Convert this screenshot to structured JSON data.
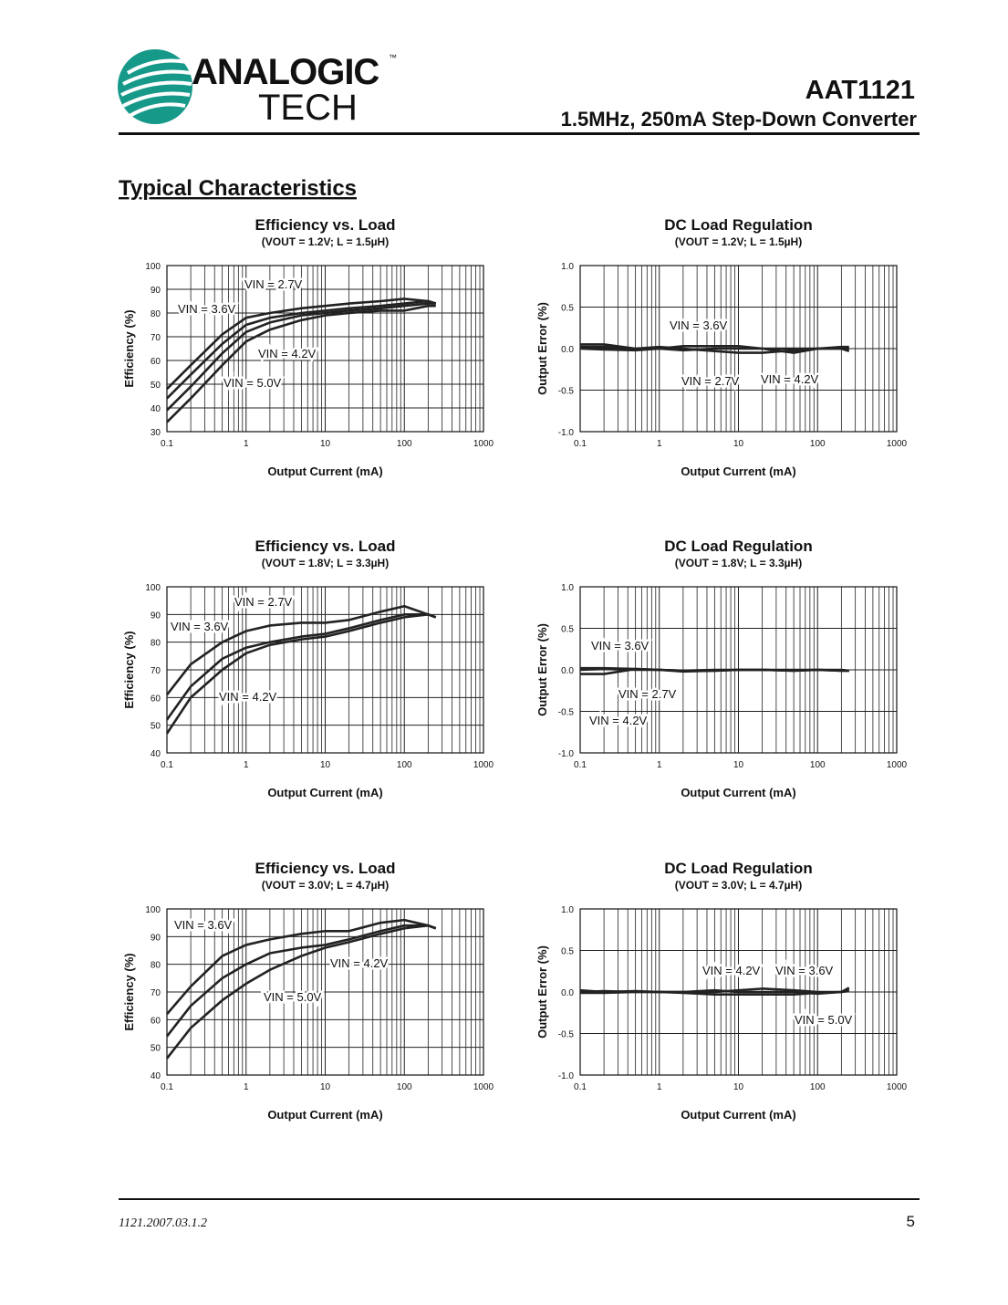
{
  "header": {
    "logo_top": "ANALOGIC",
    "logo_bottom": "TECH",
    "trademark": "™",
    "part": "AAT1121",
    "subtitle": "1.5MHz, 250mA Step-Down Converter"
  },
  "section_title": "Typical Characteristics",
  "footer": {
    "doc_id": "1121.2007.03.1.2",
    "page": "5"
  },
  "chart_data": [
    {
      "type": "line",
      "title": "Efficiency vs. Load",
      "subtitle": "(VOUT = 1.2V; L = 1.5µH)",
      "x_label": "Output Current (mA)",
      "y_label": "Efficiency (%)",
      "xscale": "log",
      "grid": true,
      "xlim": [
        0.1,
        1000
      ],
      "xticks": [
        0.1,
        1,
        10,
        100,
        1000
      ],
      "ylim": [
        30,
        100
      ],
      "yticks": [
        30,
        40,
        50,
        60,
        70,
        80,
        90,
        100
      ],
      "x": [
        0.1,
        0.2,
        0.5,
        1,
        2,
        5,
        10,
        20,
        50,
        100,
        200,
        250
      ],
      "series": [
        {
          "name": "VIN = 2.7V",
          "color": "#222222",
          "values": [
            48,
            58,
            71,
            78,
            80,
            82,
            83,
            84,
            85,
            86,
            85,
            84
          ]
        },
        {
          "name": "VIN = 3.6V",
          "color": "#222222",
          "values": [
            44,
            54,
            67,
            75,
            78,
            80,
            81,
            82,
            83,
            84,
            85,
            84
          ]
        },
        {
          "name": "VIN = 4.2V",
          "color": "#222222",
          "values": [
            39,
            49,
            63,
            72,
            76,
            79,
            80,
            81,
            82,
            83,
            84,
            84
          ]
        },
        {
          "name": "VIN = 5.0V",
          "color": "#222222",
          "values": [
            34,
            44,
            58,
            68,
            73,
            77,
            79,
            80,
            81,
            81,
            83,
            83
          ]
        }
      ]
    },
    {
      "type": "line",
      "title": "DC Load Regulation",
      "subtitle": "(VOUT = 1.2V; L = 1.5µH)",
      "x_label": "Output Current (mA)",
      "y_label": "Output Error (%)",
      "xscale": "log",
      "grid": true,
      "xlim": [
        0.1,
        1000
      ],
      "xticks": [
        0.1,
        1,
        10,
        100,
        1000
      ],
      "ylim": [
        -1,
        1
      ],
      "yticks": [
        {
          "value": -1,
          "label": "-1.0"
        },
        -0.5,
        {
          "value": 0,
          "label": "0.0"
        },
        0.5,
        {
          "value": 1,
          "label": "1.0"
        }
      ],
      "x": [
        0.1,
        0.2,
        0.5,
        1,
        2,
        5,
        10,
        20,
        50,
        100,
        200,
        250
      ],
      "series": [
        {
          "name": "VIN = 3.6V",
          "color": "#222222",
          "values": [
            0.05,
            0.05,
            0,
            0,
            0.03,
            0.03,
            0.03,
            0,
            0,
            0,
            0,
            0
          ]
        },
        {
          "name": "VIN = 2.7V",
          "color": "#222222",
          "values": [
            0.02,
            0.02,
            0,
            0.02,
            0,
            -0.03,
            -0.05,
            -0.05,
            -0.02,
            0,
            0,
            -0.03
          ]
        },
        {
          "name": "VIN = 4.2V",
          "color": "#222222",
          "values": [
            0,
            -0.01,
            -0.02,
            0,
            -0.02,
            0,
            0,
            0,
            -0.05,
            0,
            0.02,
            0.02
          ]
        }
      ]
    },
    {
      "type": "line",
      "title": "Efficiency vs. Load",
      "subtitle": "(VOUT = 1.8V; L = 3.3µH)",
      "x_label": "Output Current (mA)",
      "y_label": "Efficiency (%)",
      "xscale": "log",
      "grid": true,
      "xlim": [
        0.1,
        1000
      ],
      "xticks": [
        0.1,
        1,
        10,
        100,
        1000
      ],
      "ylim": [
        40,
        100
      ],
      "yticks": [
        40,
        50,
        60,
        70,
        80,
        90,
        100
      ],
      "x": [
        0.1,
        0.2,
        0.5,
        1,
        2,
        5,
        10,
        20,
        50,
        100,
        200,
        250
      ],
      "series": [
        {
          "name": "VIN = 2.7V",
          "color": "#222222",
          "values": [
            61,
            72,
            80,
            84,
            86,
            87,
            87,
            88,
            91,
            93,
            90,
            89
          ]
        },
        {
          "name": "VIN = 3.6V",
          "color": "#222222",
          "values": [
            52,
            64,
            74,
            78,
            80,
            82,
            83,
            85,
            88,
            90,
            90,
            89
          ]
        },
        {
          "name": "VIN = 4.2V",
          "color": "#222222",
          "values": [
            47,
            60,
            70,
            76,
            79,
            81,
            82,
            84,
            87,
            89,
            90,
            89
          ]
        }
      ]
    },
    {
      "type": "line",
      "title": "DC Load Regulation",
      "subtitle": "(VOUT = 1.8V; L = 3.3µH)",
      "x_label": "Output Current (mA)",
      "y_label": "Output Error (%)",
      "xscale": "log",
      "grid": true,
      "xlim": [
        0.1,
        1000
      ],
      "xticks": [
        0.1,
        1,
        10,
        100,
        1000
      ],
      "ylim": [
        -1,
        1
      ],
      "yticks": [
        {
          "value": -1,
          "label": "-1.0"
        },
        -0.5,
        {
          "value": 0,
          "label": "0.0"
        },
        0.5,
        {
          "value": 1,
          "label": "1.0"
        }
      ],
      "x": [
        0.1,
        0.2,
        0.5,
        1,
        2,
        5,
        10,
        20,
        50,
        100,
        200,
        250
      ],
      "series": [
        {
          "name": "VIN = 3.6V",
          "color": "#222222",
          "values": [
            0,
            0.01,
            0,
            0,
            -0.01,
            0,
            0,
            0,
            0,
            0,
            -0.01,
            -0.01
          ]
        },
        {
          "name": "VIN = 2.7V",
          "color": "#222222",
          "values": [
            0.02,
            0.02,
            0.01,
            0,
            -0.02,
            -0.01,
            0,
            0,
            -0.01,
            0,
            -0.01,
            -0.01
          ]
        },
        {
          "name": "VIN = 4.2V",
          "color": "#222222",
          "values": [
            -0.05,
            -0.05,
            0.01,
            0,
            -0.01,
            -0.01,
            0,
            0,
            -0.01,
            0,
            0,
            -0.01
          ]
        }
      ]
    },
    {
      "type": "line",
      "title": "Efficiency vs. Load",
      "subtitle": "(VOUT = 3.0V; L = 4.7µH)",
      "x_label": "Output Current (mA)",
      "y_label": "Efficiency (%)",
      "xscale": "log",
      "grid": true,
      "xlim": [
        0.1,
        1000
      ],
      "xticks": [
        0.1,
        1,
        10,
        100,
        1000
      ],
      "ylim": [
        40,
        100
      ],
      "yticks": [
        40,
        50,
        60,
        70,
        80,
        90,
        100
      ],
      "x": [
        0.1,
        0.2,
        0.5,
        1,
        2,
        5,
        10,
        20,
        50,
        100,
        200,
        250
      ],
      "series": [
        {
          "name": "VIN = 3.6V",
          "color": "#222222",
          "values": [
            62,
            72,
            83,
            87,
            89,
            91,
            92,
            92,
            95,
            96,
            94,
            93
          ]
        },
        {
          "name": "VIN = 4.2V",
          "color": "#222222",
          "values": [
            54,
            65,
            75,
            80,
            84,
            86,
            87,
            89,
            92,
            94,
            94,
            93
          ]
        },
        {
          "name": "VIN = 5.0V",
          "color": "#222222",
          "values": [
            46,
            57,
            67,
            73,
            78,
            83,
            86,
            88,
            91,
            93,
            94,
            93
          ]
        }
      ]
    },
    {
      "type": "line",
      "title": "DC Load Regulation",
      "subtitle": "(VOUT = 3.0V; L = 4.7µH)",
      "x_label": "Output Current (mA)",
      "y_label": "Output Error (%)",
      "xscale": "log",
      "grid": true,
      "xlim": [
        0.1,
        1000
      ],
      "xticks": [
        0.1,
        1,
        10,
        100,
        1000
      ],
      "ylim": [
        -1,
        1
      ],
      "yticks": [
        {
          "value": -1,
          "label": "-1.0"
        },
        -0.5,
        {
          "value": 0,
          "label": "0.0"
        },
        0.5,
        {
          "value": 1,
          "label": "1.0"
        }
      ],
      "x": [
        0.1,
        0.2,
        0.5,
        1,
        2,
        5,
        10,
        20,
        50,
        100,
        200,
        250
      ],
      "series": [
        {
          "name": "VIN = 4.2V",
          "color": "#222222",
          "values": [
            0.02,
            0,
            0.01,
            0,
            0,
            0,
            0.02,
            0.04,
            0.02,
            0,
            0,
            0.03
          ]
        },
        {
          "name": "VIN = 3.6V",
          "color": "#222222",
          "values": [
            0,
            0.01,
            0,
            0,
            0,
            0.02,
            0,
            0,
            0,
            -0.02,
            0,
            0.05
          ]
        },
        {
          "name": "VIN = 5.0V",
          "color": "#222222",
          "values": [
            -0.01,
            -0.01,
            0,
            0,
            -0.01,
            -0.03,
            -0.03,
            -0.03,
            -0.03,
            -0.01,
            0,
            0.01
          ]
        }
      ]
    }
  ]
}
